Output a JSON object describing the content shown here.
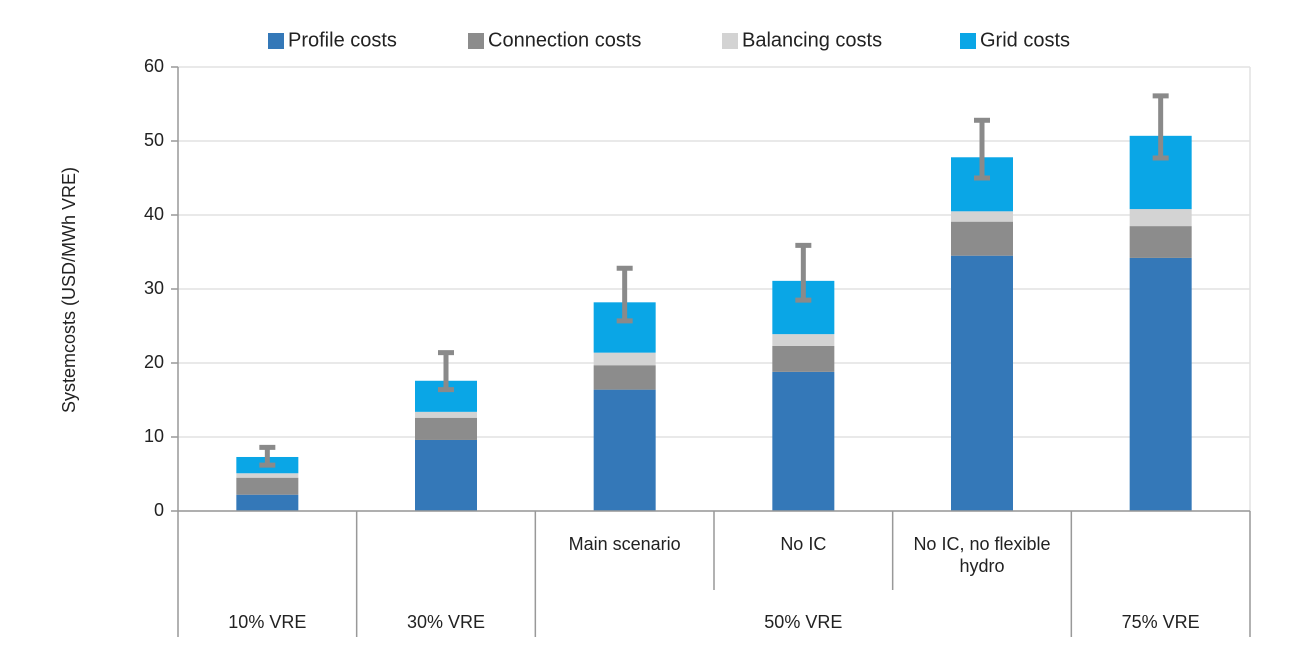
{
  "chart_data": {
    "type": "stacked_bar",
    "ylabel": "Systemcosts (USD/MWh VRE)",
    "categories": [
      null,
      null,
      "Main scenario",
      "No IC",
      "No IC, no flexible hydro",
      null
    ],
    "groups": [
      {
        "name": "10% VRE",
        "size": 1
      },
      {
        "name": "30% VRE",
        "size": 1
      },
      {
        "name": "50% VRE",
        "size": 3
      },
      {
        "name": "75% VRE",
        "size": 1
      }
    ],
    "series": [
      {
        "name": "Profile costs",
        "color": "#3478b8",
        "values": [
          2.2,
          9.6,
          16.4,
          18.8,
          34.5,
          34.2
        ]
      },
      {
        "name": "Connection costs",
        "color": "#8c8c8c",
        "values": [
          2.3,
          3.0,
          3.3,
          3.5,
          4.6,
          4.3
        ]
      },
      {
        "name": "Balancing costs",
        "color": "#d3d3d3",
        "values": [
          0.6,
          0.8,
          1.7,
          1.6,
          1.4,
          2.3
        ]
      },
      {
        "name": "Grid costs",
        "color": "#0aa6e6",
        "values": [
          2.2,
          4.2,
          6.8,
          7.2,
          7.3,
          9.9
        ]
      }
    ],
    "error_bars": {
      "color": "#8a8a8a",
      "low": [
        6.2,
        16.4,
        25.7,
        28.5,
        45.0,
        47.7
      ],
      "high": [
        8.6,
        21.4,
        32.8,
        35.9,
        52.8,
        56.1
      ]
    },
    "ylim": [
      0,
      60
    ],
    "yticks": [
      0,
      10,
      20,
      30,
      40,
      50,
      60
    ],
    "grid": true,
    "legend": "top"
  }
}
